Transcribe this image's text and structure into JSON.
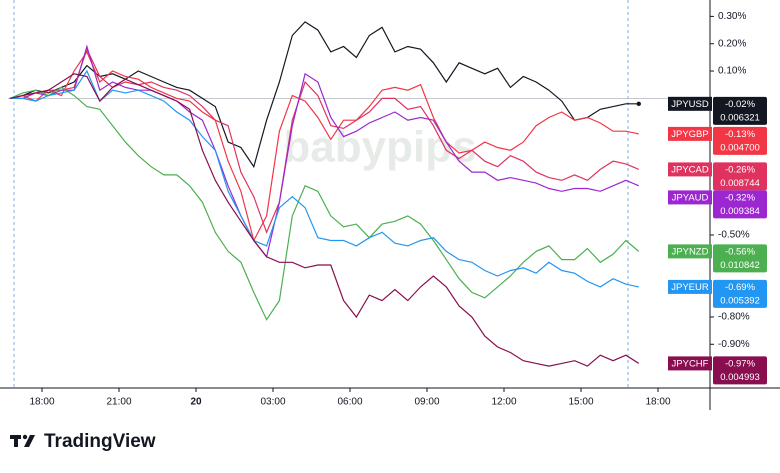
{
  "chart_data": {
    "type": "line",
    "watermark": "babypips",
    "brand": "TradingView",
    "x": [
      -1.25,
      -0.75,
      -0.25,
      0.25,
      0.75,
      1.25,
      1.75,
      2.25,
      2.75,
      3.25,
      3.75,
      4.25,
      4.75,
      5.25,
      5.75,
      6.25,
      6.75,
      7.25,
      7.75,
      8.25,
      8.75,
      9.25,
      9.75,
      10.25,
      10.75,
      11.25,
      11.75,
      12.25,
      12.75,
      13.25,
      13.75,
      14.25,
      14.75,
      15.25,
      15.75,
      16.25,
      16.75,
      17.25,
      17.75,
      18.25,
      18.75,
      19.25,
      19.75,
      20.25,
      20.75,
      21.25,
      21.75,
      22.25,
      22.75,
      23.25
    ],
    "xlim": [
      -1.3,
      26
    ],
    "xticks": [
      {
        "value": 0,
        "label": "18:00"
      },
      {
        "value": 3,
        "label": "21:00"
      },
      {
        "value": 6,
        "label": "20"
      },
      {
        "value": 9,
        "label": "03:00"
      },
      {
        "value": 12,
        "label": "06:00"
      },
      {
        "value": 15,
        "label": "09:00"
      },
      {
        "value": 18,
        "label": "12:00"
      },
      {
        "value": 21,
        "label": "15:00"
      },
      {
        "value": 24,
        "label": "18:00"
      }
    ],
    "ylim": [
      -1.06,
      0.36
    ],
    "yticks": [
      {
        "value": 0.3,
        "label": "0.30%"
      },
      {
        "value": 0.2,
        "label": "0.20%"
      },
      {
        "value": 0.1,
        "label": "0.10%"
      },
      {
        "value": -0.5,
        "label": "-0.50%"
      },
      {
        "value": -0.8,
        "label": "-0.80%"
      },
      {
        "value": -0.9,
        "label": "-0.90%"
      }
    ],
    "series": [
      {
        "name": "JPYUSD",
        "color": "#131722",
        "last_label": "-0.02%",
        "price": "0.006321",
        "values": [
          0,
          0.01,
          0.03,
          0.02,
          0.04,
          0.06,
          0.12,
          0.08,
          0.09,
          0.07,
          0.1,
          0.08,
          0.06,
          0.04,
          0.03,
          0,
          -0.03,
          -0.16,
          -0.18,
          -0.25,
          -0.08,
          0.06,
          0.23,
          0.28,
          0.25,
          0.17,
          0.19,
          0.15,
          0.23,
          0.26,
          0.17,
          0.19,
          0.18,
          0.13,
          0.06,
          0.13,
          0.11,
          0.09,
          0.11,
          0.04,
          0.08,
          0.06,
          0.03,
          -0.01,
          -0.08,
          -0.07,
          -0.04,
          -0.03,
          -0.02,
          -0.02
        ]
      },
      {
        "name": "JPYGBP",
        "color": "#f23645",
        "last_label": "-0.13%",
        "price": "0.004700",
        "values": [
          0,
          0.01,
          -0.01,
          0.03,
          0.01,
          0.1,
          0.17,
          0.06,
          0.1,
          0.08,
          0.07,
          0.04,
          0.02,
          0,
          -0.01,
          -0.05,
          -0.08,
          -0.23,
          -0.34,
          -0.52,
          -0.43,
          -0.12,
          0.01,
          -0.01,
          -0.07,
          -0.15,
          -0.08,
          -0.08,
          -0.03,
          0.03,
          0.04,
          0.03,
          0.05,
          -0.07,
          -0.16,
          -0.2,
          -0.19,
          -0.16,
          -0.18,
          -0.19,
          -0.16,
          -0.1,
          -0.07,
          -0.05,
          -0.08,
          -0.07,
          -0.09,
          -0.12,
          -0.12,
          -0.13
        ]
      },
      {
        "name": "JPYCAD",
        "color": "#e0325f",
        "last_label": "-0.26%",
        "price": "0.008744",
        "values": [
          0,
          0.01,
          0.02,
          0.03,
          0.03,
          0.04,
          0.18,
          0.08,
          0.04,
          0.06,
          0.05,
          0.06,
          0.04,
          0.03,
          0.01,
          -0.03,
          -0.08,
          -0.1,
          -0.27,
          -0.36,
          -0.49,
          -0.38,
          -0.08,
          0.06,
          0.01,
          -0.1,
          -0.11,
          -0.08,
          -0.05,
          0,
          0,
          -0.04,
          -0.03,
          -0.1,
          -0.19,
          -0.22,
          -0.19,
          -0.23,
          -0.25,
          -0.21,
          -0.23,
          -0.27,
          -0.29,
          -0.3,
          -0.28,
          -0.3,
          -0.26,
          -0.23,
          -0.24,
          -0.26
        ]
      },
      {
        "name": "JPYAUD",
        "color": "#9c27d0",
        "last_label": "-0.32%",
        "price": "0.009384",
        "values": [
          0,
          0,
          0.02,
          0.01,
          0.03,
          0.03,
          0.19,
          0.03,
          0.06,
          0.04,
          0.03,
          0.03,
          0.01,
          -0.01,
          -0.05,
          -0.08,
          -0.19,
          -0.32,
          -0.43,
          -0.52,
          -0.58,
          -0.38,
          -0.1,
          0.09,
          0.06,
          -0.07,
          -0.14,
          -0.12,
          -0.09,
          -0.07,
          -0.05,
          -0.08,
          -0.07,
          -0.08,
          -0.16,
          -0.23,
          -0.27,
          -0.27,
          -0.3,
          -0.29,
          -0.3,
          -0.31,
          -0.33,
          -0.34,
          -0.33,
          -0.33,
          -0.34,
          -0.32,
          -0.3,
          -0.32
        ]
      },
      {
        "name": "JPYNZD",
        "color": "#4caf50",
        "last_label": "-0.56%",
        "price": "0.010842",
        "values": [
          0,
          0.02,
          0.03,
          0.01,
          0.04,
          0.01,
          -0.03,
          -0.04,
          -0.1,
          -0.16,
          -0.21,
          -0.25,
          -0.28,
          -0.28,
          -0.32,
          -0.38,
          -0.49,
          -0.56,
          -0.6,
          -0.71,
          -0.81,
          -0.74,
          -0.43,
          -0.32,
          -0.34,
          -0.43,
          -0.47,
          -0.46,
          -0.51,
          -0.46,
          -0.45,
          -0.43,
          -0.46,
          -0.52,
          -0.59,
          -0.66,
          -0.71,
          -0.73,
          -0.69,
          -0.65,
          -0.6,
          -0.56,
          -0.54,
          -0.59,
          -0.59,
          -0.55,
          -0.6,
          -0.57,
          -0.52,
          -0.56
        ]
      },
      {
        "name": "JPYEUR",
        "color": "#2196f3",
        "last_label": "-0.69%",
        "price": "0.005392",
        "values": [
          0,
          0,
          -0.01,
          0.01,
          0.02,
          0.03,
          0.1,
          -0.01,
          0.03,
          0.02,
          0.03,
          0.01,
          -0.01,
          -0.05,
          -0.08,
          -0.14,
          -0.19,
          -0.34,
          -0.43,
          -0.52,
          -0.54,
          -0.4,
          -0.36,
          -0.4,
          -0.51,
          -0.52,
          -0.52,
          -0.54,
          -0.51,
          -0.49,
          -0.53,
          -0.54,
          -0.52,
          -0.51,
          -0.56,
          -0.59,
          -0.6,
          -0.63,
          -0.65,
          -0.63,
          -0.62,
          -0.64,
          -0.6,
          -0.63,
          -0.64,
          -0.67,
          -0.69,
          -0.66,
          -0.68,
          -0.69
        ]
      },
      {
        "name": "JPYCHF",
        "color": "#880e4f",
        "last_label": "-0.97%",
        "price": "0.004993",
        "values": [
          0,
          0.01,
          0.02,
          0.03,
          0.06,
          0.09,
          0.08,
          -0.01,
          0.04,
          0.07,
          0.05,
          0.03,
          0.01,
          -0.01,
          -0.04,
          -0.19,
          -0.3,
          -0.38,
          -0.45,
          -0.52,
          -0.58,
          -0.6,
          -0.6,
          -0.62,
          -0.61,
          -0.61,
          -0.74,
          -0.8,
          -0.72,
          -0.74,
          -0.7,
          -0.74,
          -0.69,
          -0.65,
          -0.69,
          -0.76,
          -0.8,
          -0.87,
          -0.91,
          -0.93,
          -0.96,
          -0.97,
          -0.98,
          -0.97,
          -0.96,
          -0.98,
          -0.94,
          -0.96,
          -0.94,
          -0.97
        ]
      }
    ]
  }
}
